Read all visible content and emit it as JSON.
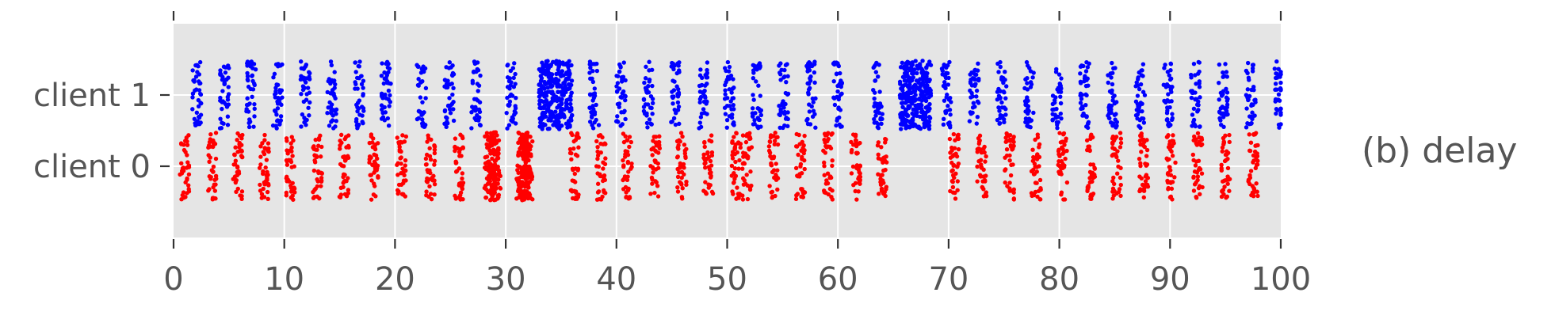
{
  "chart_data": {
    "type": "scatter",
    "title": "",
    "xlabel": "",
    "ylabel": "",
    "annotation": "(b) delay",
    "xlim": [
      0,
      100
    ],
    "ylim": [
      -1,
      2
    ],
    "x_ticks": [
      0,
      10,
      20,
      30,
      40,
      50,
      60,
      70,
      80,
      90,
      100
    ],
    "y_categories": [
      "client 0",
      "client 1"
    ],
    "grid": true,
    "legend": "none",
    "jitter_half_width_y": 0.5,
    "series": [
      {
        "category": "client 0",
        "y": 0,
        "color": "#ff0000",
        "dense_intervals": [
          [
            28.3,
            29.3
          ],
          [
            31.1,
            32.3
          ]
        ],
        "event_x": [
          1.0,
          3.5,
          5.8,
          8.2,
          10.6,
          13.0,
          15.4,
          18.1,
          20.6,
          23.2,
          25.8,
          28.5,
          29.1,
          31.4,
          32.0,
          36.2,
          38.6,
          41.0,
          43.5,
          45.9,
          48.3,
          50.8,
          51.8,
          54.2,
          56.6,
          59.1,
          61.6,
          64.0,
          70.5,
          73.0,
          75.5,
          77.9,
          80.3,
          82.8,
          85.2,
          87.6,
          90.1,
          92.5,
          95.0,
          97.5
        ]
      },
      {
        "category": "client 1",
        "y": 1,
        "color": "#0000ff",
        "dense_intervals": [
          [
            33.0,
            36.0
          ],
          [
            65.6,
            68.4
          ]
        ],
        "event_x": [
          2.1,
          4.6,
          7.0,
          9.4,
          11.9,
          14.3,
          16.8,
          19.2,
          22.4,
          24.9,
          27.3,
          30.5,
          38.0,
          40.4,
          42.9,
          45.3,
          47.8,
          50.2,
          52.7,
          55.1,
          57.6,
          60.0,
          63.6,
          69.8,
          72.3,
          74.8,
          77.3,
          79.8,
          82.3,
          84.8,
          87.3,
          89.8,
          92.3,
          94.8,
          97.3,
          99.8
        ]
      }
    ]
  }
}
